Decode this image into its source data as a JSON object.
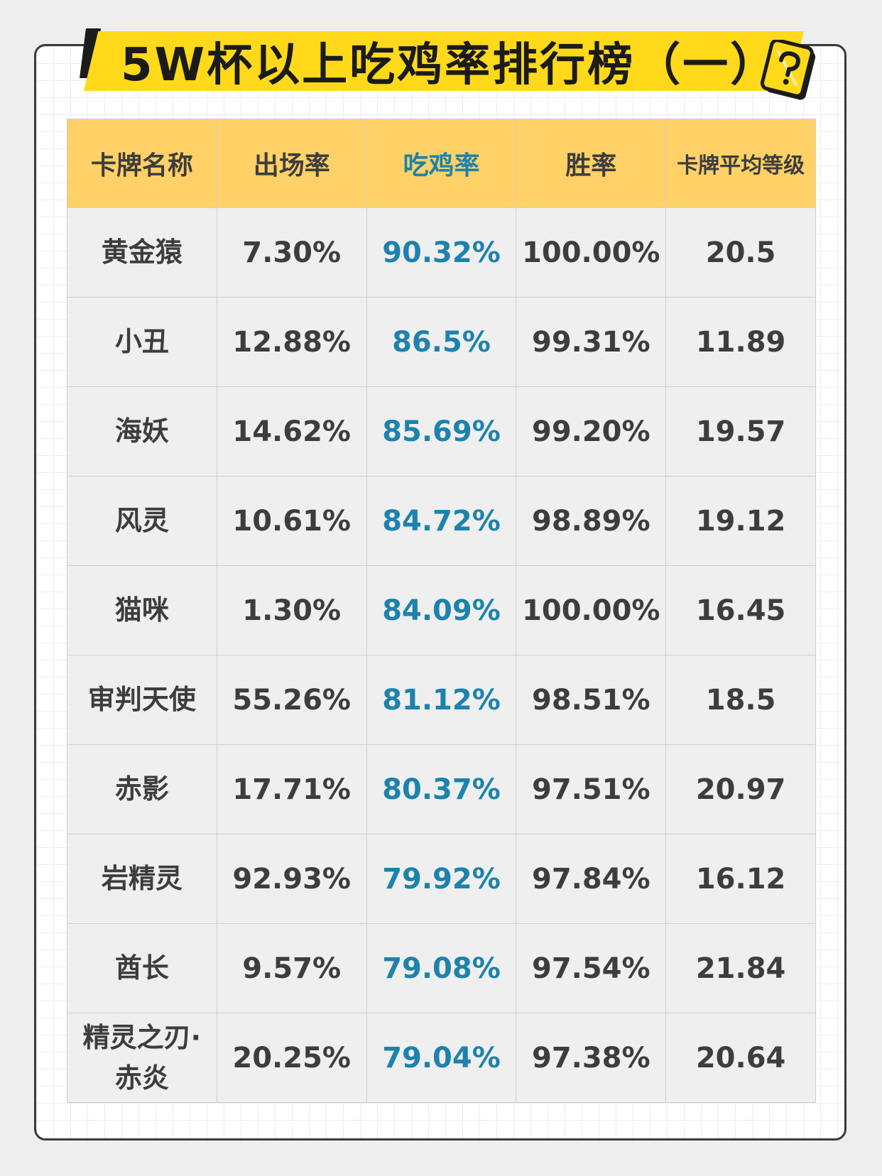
{
  "title": "5W杯以上吃鸡率排行榜（一）",
  "badge_icon": "question-card-icon",
  "colors": {
    "banner": "#ffd91a",
    "header_bg": "#ffd166",
    "highlight": "#1d82ad",
    "cell_bg": "#efefef",
    "text": "#3d3d3d"
  },
  "table": {
    "headers": [
      "卡牌名称",
      "出场率",
      "吃鸡率",
      "胜率",
      "卡牌平均等级"
    ],
    "rows": [
      [
        "黄金猿",
        "7.30%",
        "90.32%",
        "100.00%",
        "20.5"
      ],
      [
        "小丑",
        "12.88%",
        "86.5%",
        "99.31%",
        "11.89"
      ],
      [
        "海妖",
        "14.62%",
        "85.69%",
        "99.20%",
        "19.57"
      ],
      [
        "风灵",
        "10.61%",
        "84.72%",
        "98.89%",
        "19.12"
      ],
      [
        "猫咪",
        "1.30%",
        "84.09%",
        "100.00%",
        "16.45"
      ],
      [
        "审判天使",
        "55.26%",
        "81.12%",
        "98.51%",
        "18.5"
      ],
      [
        "赤影",
        "17.71%",
        "80.37%",
        "97.51%",
        "20.97"
      ],
      [
        "岩精灵",
        "92.93%",
        "79.92%",
        "97.84%",
        "16.12"
      ],
      [
        "酋长",
        "9.57%",
        "79.08%",
        "97.54%",
        "21.84"
      ],
      [
        "精灵之刃·赤炎",
        "20.25%",
        "79.04%",
        "97.38%",
        "20.64"
      ]
    ]
  }
}
